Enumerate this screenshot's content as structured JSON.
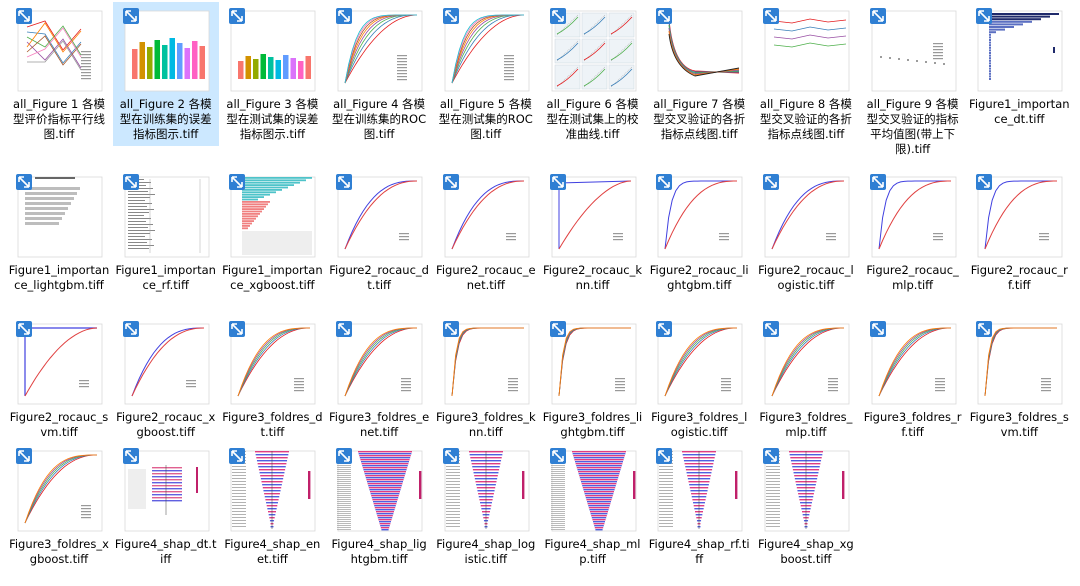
{
  "accent": "#cce8ff",
  "badge_color": "#2f7fd3",
  "files": [
    {
      "name": "all_Figure 1 各模型评价指标平行线图.tiff",
      "kind": "parallel",
      "selected": false
    },
    {
      "name": "all_Figure 2 各模型在训练集的误差指标图示.tiff",
      "kind": "bars",
      "selected": true
    },
    {
      "name": "all_Figure 3 各模型在测试集的误差指标图示.tiff",
      "kind": "bars_small",
      "selected": false
    },
    {
      "name": "all_Figure 4 各模型在训练集的ROC图.tiff",
      "kind": "roc_multi",
      "selected": false
    },
    {
      "name": "all_Figure 5 各模型在测试集的ROC图.tiff",
      "kind": "roc_multi",
      "selected": false
    },
    {
      "name": "all_Figure 6 各模型在测试集上的校准曲线.tiff",
      "kind": "grid_panels",
      "selected": false
    },
    {
      "name": "all_Figure 7 各模型交叉验证的各折指标点线图.tiff",
      "kind": "decay",
      "selected": false
    },
    {
      "name": "all_Figure 8 各模型交叉验证的各折指标点线图.tiff",
      "kind": "flatlines",
      "selected": false
    },
    {
      "name": "all_Figure 9 各模型交叉验证的指标平均值图(带上下限).tiff",
      "kind": "scatter_sparse",
      "selected": false
    },
    {
      "name": "Figure1_importance_dt.tiff",
      "kind": "importance_blue",
      "selected": false
    },
    {
      "name": "Figure1_importance_lightgbm.tiff",
      "kind": "importance_gray",
      "selected": false
    },
    {
      "name": "Figure1_importance_rf.tiff",
      "kind": "importance_text",
      "selected": false
    },
    {
      "name": "Figure1_importance_xgboost.tiff",
      "kind": "importance_xgb",
      "selected": false
    },
    {
      "name": "Figure2_rocauc_dt.tiff",
      "kind": "roc2",
      "selected": false
    },
    {
      "name": "Figure2_rocauc_enet.tiff",
      "kind": "roc2",
      "selected": false
    },
    {
      "name": "Figure2_rocauc_knn.tiff",
      "kind": "roc2_knn",
      "selected": false
    },
    {
      "name": "Figure2_rocauc_lightgbm.tiff",
      "kind": "roc2_sharp",
      "selected": false
    },
    {
      "name": "Figure2_rocauc_logistic.tiff",
      "kind": "roc2",
      "selected": false
    },
    {
      "name": "Figure2_rocauc_mlp.tiff",
      "kind": "roc2_sharp",
      "selected": false
    },
    {
      "name": "Figure2_rocauc_rf.tiff",
      "kind": "roc2_sharp",
      "selected": false
    },
    {
      "name": "Figure2_rocauc_svm.tiff",
      "kind": "roc2_svm",
      "selected": false
    },
    {
      "name": "Figure2_rocauc_xgboost.tiff",
      "kind": "roc2",
      "selected": false
    },
    {
      "name": "Figure3_foldres_dt.tiff",
      "kind": "roc_folds",
      "selected": false
    },
    {
      "name": "Figure3_foldres_enet.tiff",
      "kind": "roc_folds",
      "selected": false
    },
    {
      "name": "Figure3_foldres_knn.tiff",
      "kind": "roc_folds_sharp",
      "selected": false
    },
    {
      "name": "Figure3_foldres_lightgbm.tiff",
      "kind": "roc_folds_sharp",
      "selected": false
    },
    {
      "name": "Figure3_foldres_logistic.tiff",
      "kind": "roc_folds",
      "selected": false
    },
    {
      "name": "Figure3_foldres_mlp.tiff",
      "kind": "roc_folds",
      "selected": false
    },
    {
      "name": "Figure3_foldres_rf.tiff",
      "kind": "roc_folds",
      "selected": false
    },
    {
      "name": "Figure3_foldres_svm.tiff",
      "kind": "roc_folds_sharp",
      "selected": false
    },
    {
      "name": "Figure3_foldres_xgboost.tiff",
      "kind": "roc_folds",
      "selected": false
    },
    {
      "name": "Figure4_shap_dt.tiff",
      "kind": "shap_small",
      "selected": false
    },
    {
      "name": "Figure4_shap_enet.tiff",
      "kind": "shap",
      "selected": false
    },
    {
      "name": "Figure4_shap_lightgbm.tiff",
      "kind": "shap_dense",
      "selected": false
    },
    {
      "name": "Figure4_shap_logistic.tiff",
      "kind": "shap",
      "selected": false
    },
    {
      "name": "Figure4_shap_mlp.tiff",
      "kind": "shap_dense",
      "selected": false
    },
    {
      "name": "Figure4_shap_rf.tiff",
      "kind": "shap",
      "selected": false
    },
    {
      "name": "Figure4_shap_xgboost.tiff",
      "kind": "shap",
      "selected": false
    }
  ]
}
